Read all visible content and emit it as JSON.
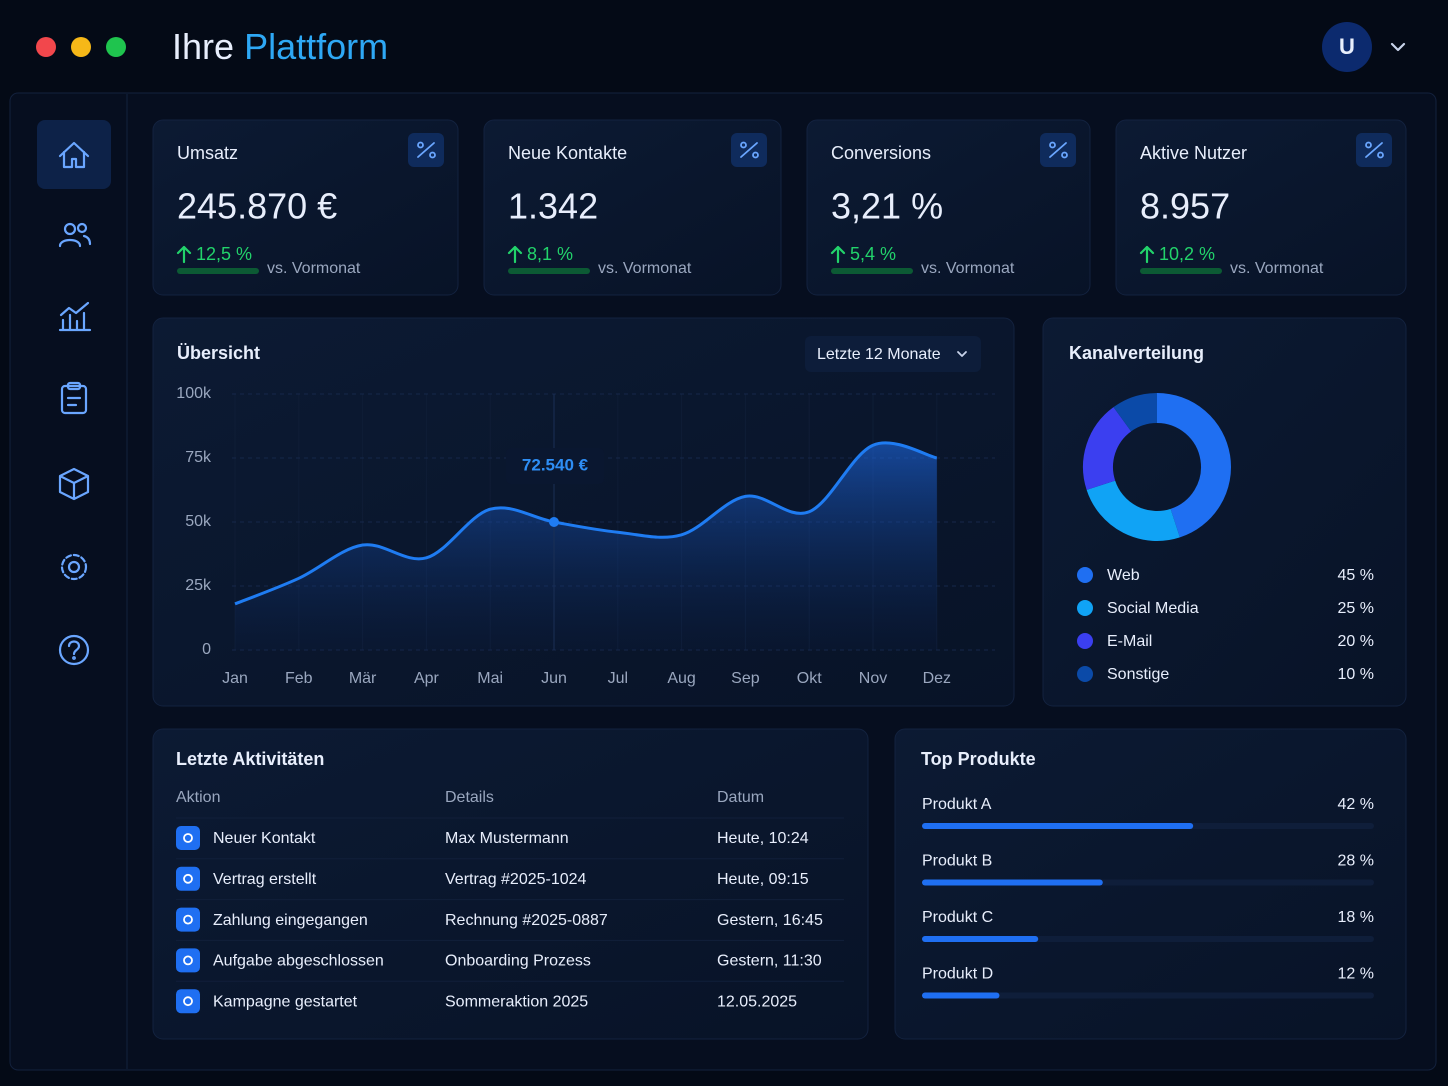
{
  "header": {
    "title": "Ihre",
    "title_highlight": "Plattform",
    "avatar": "U"
  },
  "kpis": [
    {
      "label": "Umsatz",
      "value": "245.870 €",
      "change": "12,5 %",
      "note": "vs. Vormonat"
    },
    {
      "label": "Neue Kontakte",
      "value": "1.342",
      "change": "8,1 %",
      "note": "vs. Vormonat"
    },
    {
      "label": "Conversions",
      "value": "3,21 %",
      "change": "5,4 %",
      "note": "vs. Vormonat"
    },
    {
      "label": "Aktive Nutzer",
      "value": "8.957",
      "change": "10,2 %",
      "note": "vs. Vormonat"
    }
  ],
  "chart_data": [
    {
      "type": "line",
      "title": "Übersicht",
      "filter": "Letzte 12 Monate",
      "categories": [
        "Jan",
        "Feb",
        "Mär",
        "Apr",
        "Mai",
        "Jun",
        "Jul",
        "Aug",
        "Sep",
        "Okt",
        "Nov",
        "Dez"
      ],
      "values": [
        18000,
        28000,
        41000,
        36000,
        55000,
        50000,
        46000,
        45000,
        60000,
        54000,
        80000,
        75000
      ],
      "color": "#1f7cf2",
      "ylim": [
        0,
        100000
      ],
      "yticks": [
        0,
        {
          "value": 25000,
          "label": "25k"
        },
        {
          "value": 50000,
          "label": "50k"
        },
        {
          "value": 75000,
          "label": "75k"
        },
        {
          "value": 100000,
          "label": "100k"
        }
      ],
      "grid": true,
      "annotation": "72.540 €"
    },
    {
      "type": "pie",
      "title": "Kanalverteilung",
      "donut": true,
      "categories": [
        "Web",
        "Social Media",
        "E-Mail",
        "Sonstige"
      ],
      "values": [
        45,
        25,
        20,
        10
      ],
      "value_labels": [
        "45 %",
        "25 %",
        "20 %",
        "10 %"
      ],
      "colors": [
        "#1f6ff2",
        "#10a3f5",
        "#3b3ff0",
        "#0b4aa8"
      ]
    },
    {
      "type": "bar",
      "title": "Top Produkte",
      "orientation": "horizontal",
      "categories": [
        "Produkt A",
        "Produkt B",
        "Produkt C",
        "Produkt D"
      ],
      "values": [
        42,
        28,
        18,
        12
      ],
      "value_labels": [
        "42 %",
        "28 %",
        "18 %",
        "12 %"
      ],
      "color": "#1f6ff2",
      "xlim": [
        0,
        70
      ]
    }
  ],
  "activities": {
    "title": "Letzte Aktivitäten",
    "columns": [
      "Aktion",
      "Details",
      "Datum"
    ],
    "rows": [
      [
        "Neuer Kontakt",
        "Max Mustermann",
        "Heute, 10:24"
      ],
      [
        "Vertrag erstellt",
        "Vertrag #2025-1024",
        "Heute, 09:15"
      ],
      [
        "Zahlung eingegangen",
        "Rechnung #2025-0887",
        "Gestern, 16:45"
      ],
      [
        "Aufgabe abgeschlossen",
        "Onboarding Prozess",
        "Gestern, 11:30"
      ],
      [
        "Kampagne gestartet",
        "Sommeraktion 2025",
        "12.05.2025"
      ]
    ]
  }
}
